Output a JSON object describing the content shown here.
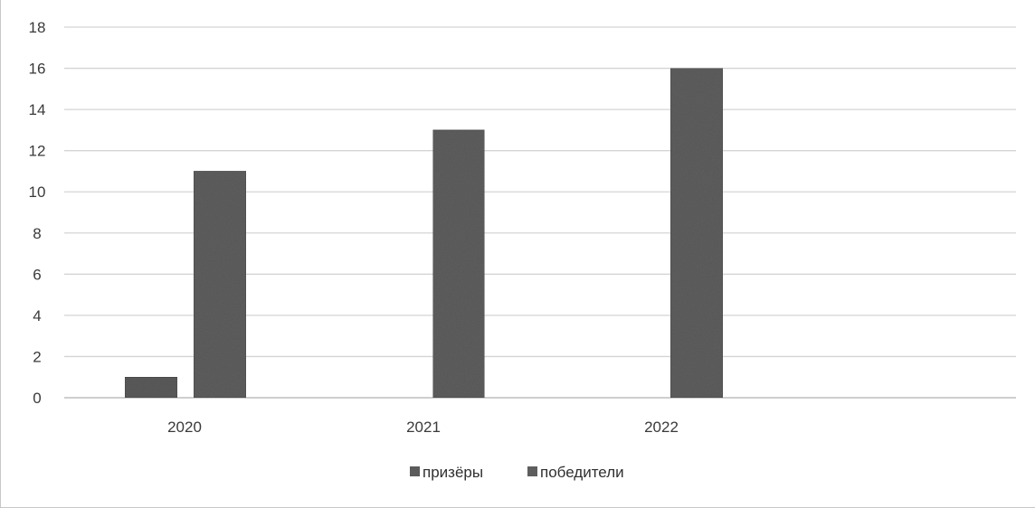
{
  "chart_data": {
    "type": "bar",
    "categories": [
      "2020",
      "2021",
      "2022"
    ],
    "series": [
      {
        "name": "призёры",
        "values": [
          1,
          0,
          0
        ],
        "color": "#5b5b5b"
      },
      {
        "name": "победители",
        "values": [
          11,
          13,
          16
        ],
        "color": "#5e5e5e"
      }
    ],
    "y_ticks": [
      "0",
      "2",
      "4",
      "6",
      "8",
      "10",
      "12",
      "14",
      "16",
      "18"
    ],
    "ylim": [
      0,
      18
    ],
    "grid": true,
    "legend_position": "bottom"
  }
}
